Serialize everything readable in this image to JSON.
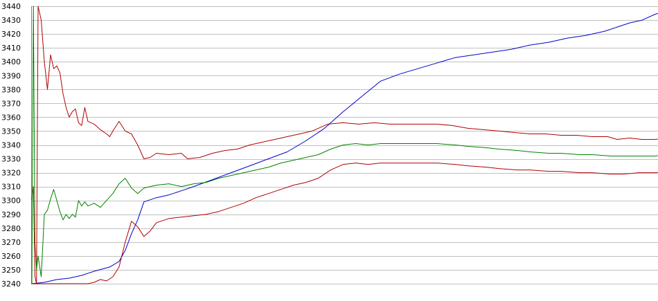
{
  "chart_data": {
    "type": "line",
    "title": "",
    "xlabel": "",
    "ylabel": "",
    "ylim": [
      3240,
      3440
    ],
    "yticks": [
      3240,
      3250,
      3260,
      3270,
      3280,
      3290,
      3300,
      3310,
      3320,
      3330,
      3340,
      3350,
      3360,
      3370,
      3380,
      3390,
      3400,
      3410,
      3420,
      3430,
      3440
    ],
    "ytick_labels": [
      "3240",
      "3250",
      "3260",
      "3270",
      "3280",
      "3290",
      "3300",
      "3310",
      "3320",
      "3330",
      "3340",
      "3350",
      "3360",
      "3370",
      "3380",
      "3390",
      "3400",
      "3410",
      "3420",
      "3430",
      "3440"
    ],
    "xlim": [
      0,
      200
    ],
    "grid": true,
    "legend": "none",
    "series": [
      {
        "color": "#0000cc",
        "points": [
          [
            0,
            3240
          ],
          [
            4,
            3241
          ],
          [
            8,
            3243
          ],
          [
            12,
            3244
          ],
          [
            16,
            3246
          ],
          [
            20,
            3249
          ],
          [
            25,
            3252
          ],
          [
            28,
            3256
          ],
          [
            30,
            3264
          ],
          [
            32,
            3276
          ],
          [
            34,
            3286
          ],
          [
            36,
            3299
          ],
          [
            40,
            3302
          ],
          [
            44,
            3304
          ],
          [
            48,
            3307
          ],
          [
            52,
            3310
          ],
          [
            58,
            3315
          ],
          [
            64,
            3320
          ],
          [
            70,
            3325
          ],
          [
            76,
            3330
          ],
          [
            82,
            3335
          ],
          [
            88,
            3343
          ],
          [
            94,
            3352
          ],
          [
            100,
            3364
          ],
          [
            106,
            3375
          ],
          [
            112,
            3386
          ],
          [
            118,
            3391
          ],
          [
            124,
            3395
          ],
          [
            130,
            3399
          ],
          [
            136,
            3403
          ],
          [
            142,
            3405
          ],
          [
            148,
            3407
          ],
          [
            154,
            3409
          ],
          [
            160,
            3412
          ],
          [
            166,
            3414
          ],
          [
            172,
            3417
          ],
          [
            178,
            3419
          ],
          [
            184,
            3422
          ],
          [
            188,
            3425
          ],
          [
            192,
            3428
          ],
          [
            196,
            3430
          ],
          [
            200,
            3434
          ],
          [
            205,
            3438
          ],
          [
            210,
            3440
          ]
        ]
      },
      {
        "color": "#b00000",
        "points": [
          [
            0,
            3300
          ],
          [
            0.5,
            3310
          ],
          [
            1,
            3245
          ],
          [
            1.5,
            3240
          ],
          [
            2,
            3440
          ],
          [
            3,
            3430
          ],
          [
            4,
            3400
          ],
          [
            5,
            3380
          ],
          [
            6,
            3405
          ],
          [
            7,
            3395
          ],
          [
            8,
            3397
          ],
          [
            9,
            3392
          ],
          [
            10,
            3377
          ],
          [
            11,
            3367
          ],
          [
            12,
            3360
          ],
          [
            13,
            3364
          ],
          [
            14,
            3366
          ],
          [
            15,
            3356
          ],
          [
            16,
            3354
          ],
          [
            17,
            3367
          ],
          [
            18,
            3357
          ],
          [
            20,
            3355
          ],
          [
            22,
            3351
          ],
          [
            24,
            3348
          ],
          [
            25,
            3346
          ],
          [
            26,
            3350
          ],
          [
            28,
            3357
          ],
          [
            30,
            3350
          ],
          [
            32,
            3348
          ],
          [
            34,
            3340
          ],
          [
            36,
            3330
          ],
          [
            38,
            3331
          ],
          [
            40,
            3334
          ],
          [
            44,
            3333
          ],
          [
            48,
            3334
          ],
          [
            50,
            3330
          ],
          [
            54,
            3331
          ],
          [
            58,
            3334
          ],
          [
            62,
            3336
          ],
          [
            66,
            3337
          ],
          [
            70,
            3340
          ],
          [
            74,
            3342
          ],
          [
            78,
            3344
          ],
          [
            82,
            3346
          ],
          [
            86,
            3348
          ],
          [
            90,
            3350
          ],
          [
            95,
            3355
          ],
          [
            100,
            3356
          ],
          [
            105,
            3355
          ],
          [
            110,
            3356
          ],
          [
            115,
            3355
          ],
          [
            120,
            3355
          ],
          [
            125,
            3355
          ],
          [
            130,
            3355
          ],
          [
            135,
            3354
          ],
          [
            140,
            3352
          ],
          [
            145,
            3351
          ],
          [
            150,
            3350
          ],
          [
            155,
            3349
          ],
          [
            160,
            3348
          ],
          [
            165,
            3348
          ],
          [
            170,
            3347
          ],
          [
            175,
            3347
          ],
          [
            180,
            3346
          ],
          [
            185,
            3346
          ],
          [
            188,
            3344
          ],
          [
            192,
            3345
          ],
          [
            196,
            3344
          ],
          [
            200,
            3344
          ],
          [
            205,
            3345
          ],
          [
            208,
            3347
          ],
          [
            210,
            3350
          ]
        ]
      },
      {
        "color": "#008000",
        "points": [
          [
            0,
            3240
          ],
          [
            0.5,
            3440
          ],
          [
            1,
            3270
          ],
          [
            1.5,
            3250
          ],
          [
            2,
            3260
          ],
          [
            3,
            3245
          ],
          [
            4,
            3290
          ],
          [
            5,
            3293
          ],
          [
            6,
            3301
          ],
          [
            7,
            3308
          ],
          [
            8,
            3300
          ],
          [
            9,
            3292
          ],
          [
            10,
            3286
          ],
          [
            11,
            3290
          ],
          [
            12,
            3287
          ],
          [
            13,
            3290
          ],
          [
            14,
            3288
          ],
          [
            15,
            3300
          ],
          [
            16,
            3296
          ],
          [
            17,
            3299
          ],
          [
            18,
            3296
          ],
          [
            20,
            3298
          ],
          [
            22,
            3295
          ],
          [
            24,
            3300
          ],
          [
            26,
            3305
          ],
          [
            28,
            3312
          ],
          [
            30,
            3316
          ],
          [
            32,
            3309
          ],
          [
            34,
            3305
          ],
          [
            36,
            3309
          ],
          [
            40,
            3311
          ],
          [
            44,
            3312
          ],
          [
            48,
            3310
          ],
          [
            52,
            3312
          ],
          [
            56,
            3313
          ],
          [
            60,
            3316
          ],
          [
            64,
            3318
          ],
          [
            68,
            3320
          ],
          [
            72,
            3322
          ],
          [
            76,
            3324
          ],
          [
            80,
            3327
          ],
          [
            84,
            3329
          ],
          [
            88,
            3331
          ],
          [
            92,
            3333
          ],
          [
            96,
            3337
          ],
          [
            100,
            3340
          ],
          [
            104,
            3341
          ],
          [
            108,
            3340
          ],
          [
            112,
            3341
          ],
          [
            118,
            3341
          ],
          [
            124,
            3341
          ],
          [
            130,
            3341
          ],
          [
            136,
            3340
          ],
          [
            140,
            3339
          ],
          [
            146,
            3338
          ],
          [
            150,
            3337
          ],
          [
            156,
            3336
          ],
          [
            160,
            3335
          ],
          [
            166,
            3334
          ],
          [
            170,
            3334
          ],
          [
            176,
            3333
          ],
          [
            180,
            3333
          ],
          [
            186,
            3332
          ],
          [
            190,
            3332
          ],
          [
            195,
            3332
          ],
          [
            200,
            3332
          ],
          [
            205,
            3333
          ],
          [
            208,
            3334
          ],
          [
            210,
            3338
          ]
        ]
      },
      {
        "color": "#b00000",
        "points": [
          [
            0,
            3240
          ],
          [
            5,
            3240
          ],
          [
            10,
            3240
          ],
          [
            14,
            3240
          ],
          [
            18,
            3240
          ],
          [
            20,
            3241
          ],
          [
            22,
            3243
          ],
          [
            24,
            3242
          ],
          [
            26,
            3245
          ],
          [
            28,
            3252
          ],
          [
            30,
            3270
          ],
          [
            32,
            3285
          ],
          [
            34,
            3281
          ],
          [
            36,
            3274
          ],
          [
            38,
            3278
          ],
          [
            40,
            3284
          ],
          [
            44,
            3287
          ],
          [
            48,
            3288
          ],
          [
            52,
            3289
          ],
          [
            56,
            3290
          ],
          [
            60,
            3292
          ],
          [
            64,
            3295
          ],
          [
            68,
            3298
          ],
          [
            72,
            3302
          ],
          [
            76,
            3305
          ],
          [
            80,
            3308
          ],
          [
            84,
            3311
          ],
          [
            88,
            3313
          ],
          [
            92,
            3316
          ],
          [
            96,
            3322
          ],
          [
            100,
            3326
          ],
          [
            104,
            3327
          ],
          [
            108,
            3326
          ],
          [
            112,
            3327
          ],
          [
            118,
            3327
          ],
          [
            124,
            3327
          ],
          [
            130,
            3327
          ],
          [
            136,
            3326
          ],
          [
            140,
            3325
          ],
          [
            146,
            3324
          ],
          [
            150,
            3323
          ],
          [
            156,
            3322
          ],
          [
            160,
            3322
          ],
          [
            166,
            3321
          ],
          [
            170,
            3321
          ],
          [
            176,
            3320
          ],
          [
            180,
            3320
          ],
          [
            186,
            3319
          ],
          [
            190,
            3319
          ],
          [
            195,
            3320
          ],
          [
            200,
            3320
          ],
          [
            205,
            3321
          ],
          [
            208,
            3322
          ],
          [
            210,
            3326
          ]
        ]
      }
    ]
  }
}
